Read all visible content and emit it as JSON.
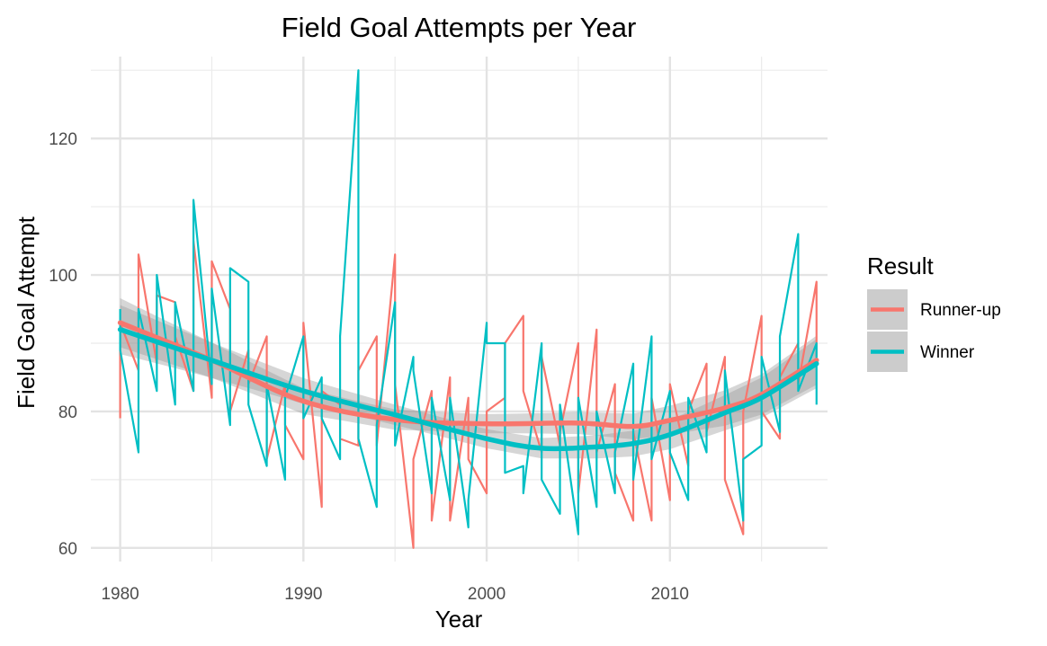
{
  "chart_data": {
    "type": "line",
    "title": "Field Goal Attempts per Year",
    "xlabel": "Year",
    "ylabel": "Field Goal Attempt",
    "xlim": [
      1978.4,
      2018.6
    ],
    "ylim": [
      58,
      132
    ],
    "x_ticks": [
      1980,
      1990,
      2000,
      2010
    ],
    "y_ticks": [
      60,
      80,
      100,
      120
    ],
    "grid": true,
    "legend": {
      "title": "Result",
      "position": "right"
    },
    "series": [
      {
        "name": "Runner-up",
        "color": "#f8766d",
        "values": [
          [
            1980,
            79
          ],
          [
            1980,
            93
          ],
          [
            1981,
            86
          ],
          [
            1981,
            103
          ],
          [
            1982,
            87
          ],
          [
            1982,
            97
          ],
          [
            1983,
            96
          ],
          [
            1983,
            91
          ],
          [
            1984,
            83
          ],
          [
            1984,
            105
          ],
          [
            1985,
            82
          ],
          [
            1985,
            102
          ],
          [
            1986,
            95
          ],
          [
            1986,
            80
          ],
          [
            1987,
            89
          ],
          [
            1987,
            84
          ],
          [
            1988,
            91
          ],
          [
            1988,
            73
          ],
          [
            1989,
            84
          ],
          [
            1989,
            78
          ],
          [
            1990,
            73
          ],
          [
            1990,
            93
          ],
          [
            1991,
            66
          ],
          [
            1991,
            83
          ],
          [
            1992,
            81
          ],
          [
            1992,
            76
          ],
          [
            1993,
            75
          ],
          [
            1993,
            86
          ],
          [
            1994,
            91
          ],
          [
            1994,
            75
          ],
          [
            1995,
            103
          ],
          [
            1995,
            84
          ],
          [
            1996,
            60
          ],
          [
            1996,
            73
          ],
          [
            1997,
            83
          ],
          [
            1997,
            64
          ],
          [
            1998,
            85
          ],
          [
            1998,
            64
          ],
          [
            1999,
            82
          ],
          [
            1999,
            73
          ],
          [
            2000,
            68
          ],
          [
            2000,
            80
          ],
          [
            2001,
            82
          ],
          [
            2001,
            90
          ],
          [
            2002,
            94
          ],
          [
            2002,
            83
          ],
          [
            2003,
            74
          ],
          [
            2003,
            88
          ],
          [
            2004,
            75
          ],
          [
            2004,
            77
          ],
          [
            2005,
            90
          ],
          [
            2005,
            68
          ],
          [
            2006,
            92
          ],
          [
            2006,
            74
          ],
          [
            2007,
            84
          ],
          [
            2007,
            71
          ],
          [
            2008,
            64
          ],
          [
            2008,
            77
          ],
          [
            2009,
            64
          ],
          [
            2009,
            82
          ],
          [
            2010,
            67
          ],
          [
            2010,
            84
          ],
          [
            2011,
            72
          ],
          [
            2011,
            80
          ],
          [
            2012,
            87
          ],
          [
            2012,
            77
          ],
          [
            2013,
            88
          ],
          [
            2013,
            70
          ],
          [
            2014,
            62
          ],
          [
            2014,
            80
          ],
          [
            2015,
            94
          ],
          [
            2015,
            80
          ],
          [
            2016,
            76
          ],
          [
            2016,
            85
          ],
          [
            2017,
            90
          ],
          [
            2017,
            84
          ],
          [
            2018,
            99
          ],
          [
            2018,
            88
          ]
        ],
        "smooth": [
          [
            1980,
            93
          ],
          [
            1985,
            87.5
          ],
          [
            1990,
            81.5
          ],
          [
            1995,
            78.8
          ],
          [
            2000,
            78.2
          ],
          [
            2005,
            78.3
          ],
          [
            2008,
            77.8
          ],
          [
            2010,
            78.7
          ],
          [
            2013,
            80.5
          ],
          [
            2015,
            82.5
          ],
          [
            2018,
            87.5
          ]
        ]
      },
      {
        "name": "Winner",
        "color": "#00bfc4",
        "values": [
          [
            1980,
            95
          ],
          [
            1980,
            89
          ],
          [
            1981,
            74
          ],
          [
            1981,
            95
          ],
          [
            1982,
            83
          ],
          [
            1982,
            100
          ],
          [
            1983,
            81
          ],
          [
            1983,
            96
          ],
          [
            1984,
            83
          ],
          [
            1984,
            111
          ],
          [
            1985,
            84
          ],
          [
            1985,
            98
          ],
          [
            1986,
            78
          ],
          [
            1986,
            101
          ],
          [
            1987,
            99
          ],
          [
            1987,
            81
          ],
          [
            1988,
            72
          ],
          [
            1988,
            84
          ],
          [
            1989,
            70
          ],
          [
            1989,
            82
          ],
          [
            1990,
            91
          ],
          [
            1990,
            79
          ],
          [
            1991,
            85
          ],
          [
            1991,
            79
          ],
          [
            1992,
            73
          ],
          [
            1992,
            91
          ],
          [
            1993,
            130
          ],
          [
            1993,
            76
          ],
          [
            1994,
            66
          ],
          [
            1994,
            78
          ],
          [
            1995,
            96
          ],
          [
            1995,
            75
          ],
          [
            1996,
            88
          ],
          [
            1996,
            86
          ],
          [
            1997,
            68
          ],
          [
            1997,
            82
          ],
          [
            1998,
            67
          ],
          [
            1998,
            82
          ],
          [
            1999,
            63
          ],
          [
            1999,
            67
          ],
          [
            2000,
            93
          ],
          [
            2000,
            90
          ],
          [
            2001,
            90
          ],
          [
            2001,
            71
          ],
          [
            2002,
            72
          ],
          [
            2002,
            68
          ],
          [
            2003,
            90
          ],
          [
            2003,
            70
          ],
          [
            2004,
            65
          ],
          [
            2004,
            81
          ],
          [
            2005,
            62
          ],
          [
            2005,
            82
          ],
          [
            2006,
            66
          ],
          [
            2006,
            80
          ],
          [
            2007,
            68
          ],
          [
            2007,
            74
          ],
          [
            2008,
            87
          ],
          [
            2008,
            70
          ],
          [
            2009,
            91
          ],
          [
            2009,
            73
          ],
          [
            2010,
            83
          ],
          [
            2010,
            74
          ],
          [
            2011,
            67
          ],
          [
            2011,
            82
          ],
          [
            2012,
            74
          ],
          [
            2012,
            80
          ],
          [
            2013,
            80
          ],
          [
            2013,
            86
          ],
          [
            2014,
            64
          ],
          [
            2014,
            73
          ],
          [
            2015,
            75
          ],
          [
            2015,
            88
          ],
          [
            2016,
            77
          ],
          [
            2016,
            91
          ],
          [
            2017,
            106
          ],
          [
            2017,
            83
          ],
          [
            2018,
            90
          ],
          [
            2018,
            81
          ]
        ],
        "smooth": [
          [
            1980,
            92
          ],
          [
            1985,
            87.5
          ],
          [
            1990,
            83
          ],
          [
            1995,
            79.5
          ],
          [
            2000,
            76
          ],
          [
            2003,
            74.6
          ],
          [
            2006,
            74.8
          ],
          [
            2008,
            75.3
          ],
          [
            2010,
            76.6
          ],
          [
            2013,
            79.8
          ],
          [
            2015,
            82
          ],
          [
            2018,
            87
          ]
        ]
      }
    ],
    "confidence_band_color": "#999999"
  }
}
